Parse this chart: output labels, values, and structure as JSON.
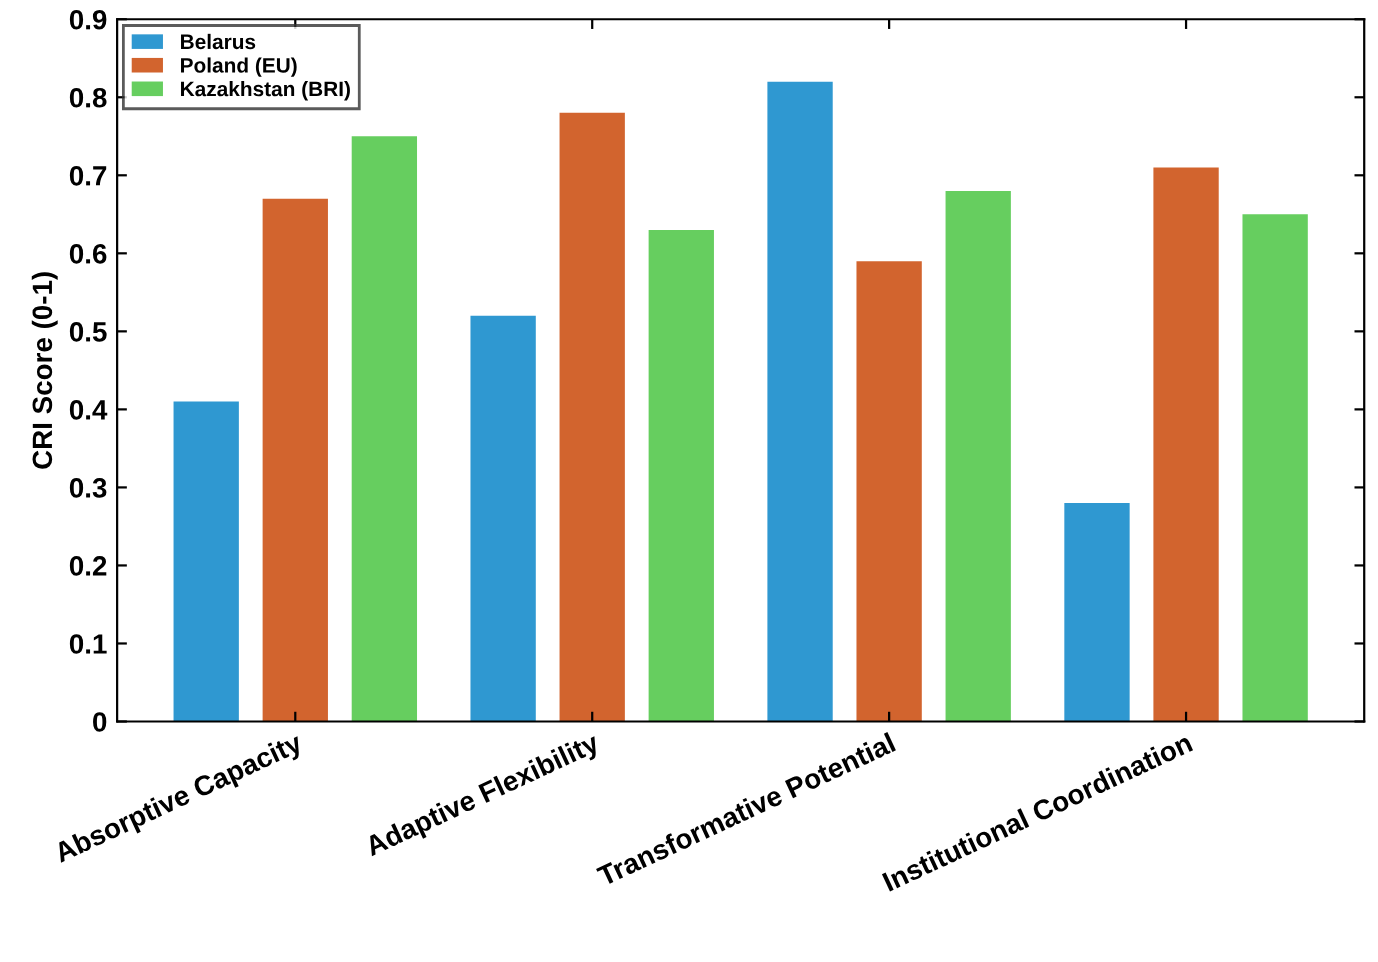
{
  "chart_data": {
    "type": "bar",
    "ylabel": "CRI Score (0-1)",
    "categories": [
      "Absorptive Capacity",
      "Adaptive Flexibility",
      "Transformative Potential",
      "Institutional Coordination"
    ],
    "series": [
      {
        "name": "Belarus",
        "color": "#2f98d1",
        "values": [
          0.41,
          0.52,
          0.82,
          0.28
        ]
      },
      {
        "name": "Poland (EU)",
        "color": "#d2642e",
        "values": [
          0.67,
          0.78,
          0.59,
          0.71
        ]
      },
      {
        "name": "Kazakhstan (BRI)",
        "color": "#66ce5f",
        "values": [
          0.75,
          0.63,
          0.68,
          0.65
        ]
      }
    ],
    "ylim": [
      0,
      0.9
    ],
    "yticks": [
      0,
      0.1,
      0.2,
      0.3,
      0.4,
      0.5,
      0.6,
      0.7,
      0.8,
      0.9
    ],
    "grid": false,
    "legend": "top left"
  }
}
